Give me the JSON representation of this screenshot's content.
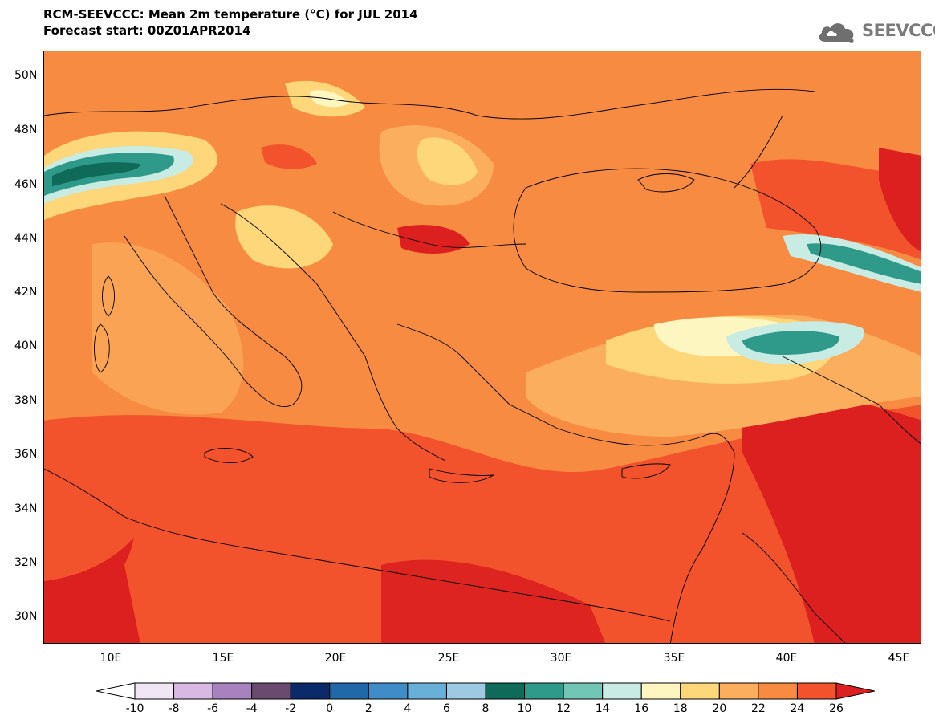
{
  "header": {
    "title_line1": "RCM-SEEVCCC: Mean 2m temperature (°C) for JUL 2014",
    "title_line2": "Forecast start: 00Z01APR2014",
    "logo_text": "SEEVCCC"
  },
  "map": {
    "variable": "Mean 2m temperature",
    "units": "°C",
    "month": "JUL 2014",
    "lat_labels": [
      "50N",
      "48N",
      "46N",
      "44N",
      "42N",
      "40N",
      "38N",
      "36N",
      "34N",
      "32N",
      "30N"
    ],
    "lon_labels": [
      "10E",
      "15E",
      "20E",
      "25E",
      "30E",
      "35E",
      "40E",
      "45E"
    ],
    "lon_range": [
      7,
      46
    ],
    "lat_range": [
      29,
      51
    ]
  },
  "colorbar": {
    "labels": [
      "-10",
      "-8",
      "-6",
      "-4",
      "-2",
      "0",
      "2",
      "4",
      "6",
      "8",
      "10",
      "12",
      "14",
      "16",
      "18",
      "20",
      "22",
      "24",
      "26"
    ],
    "colors": [
      "#ffffff",
      "#f1e6f4",
      "#d9b8e4",
      "#a882bf",
      "#6b4a6f",
      "#0b2a6a",
      "#2068a8",
      "#3f8cc8",
      "#68b0d8",
      "#9dc9e2",
      "#0f6a5a",
      "#2f9a8a",
      "#72c6b6",
      "#c8ebe4",
      "#fef6c0",
      "#fdd77a",
      "#fbae5e",
      "#f88b42",
      "#f2522c",
      "#dc1f1f"
    ]
  }
}
